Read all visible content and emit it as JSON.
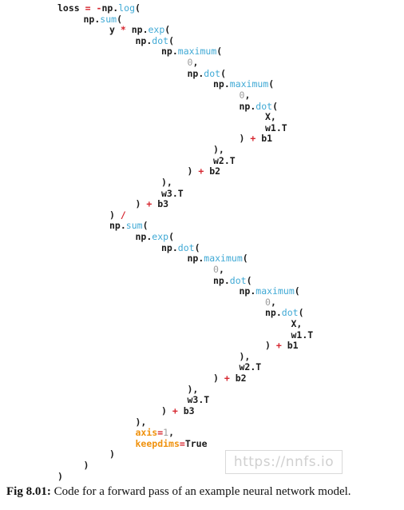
{
  "code_lines": [
    {
      "indent": 0,
      "tokens": [
        {
          "t": "loss ",
          "c": "default"
        },
        {
          "t": "=",
          "c": "op"
        },
        {
          "t": " ",
          "c": "default"
        },
        {
          "t": "-",
          "c": "op"
        },
        {
          "t": "np.",
          "c": "default"
        },
        {
          "t": "log",
          "c": "func"
        },
        {
          "t": "(",
          "c": "default"
        }
      ]
    },
    {
      "indent": 1,
      "tokens": [
        {
          "t": "np.",
          "c": "default"
        },
        {
          "t": "sum",
          "c": "func"
        },
        {
          "t": "(",
          "c": "default"
        }
      ]
    },
    {
      "indent": 2,
      "tokens": [
        {
          "t": "y ",
          "c": "default"
        },
        {
          "t": "*",
          "c": "op"
        },
        {
          "t": " np.",
          "c": "default"
        },
        {
          "t": "exp",
          "c": "func"
        },
        {
          "t": "(",
          "c": "default"
        }
      ]
    },
    {
      "indent": 3,
      "tokens": [
        {
          "t": "np.",
          "c": "default"
        },
        {
          "t": "dot",
          "c": "func"
        },
        {
          "t": "(",
          "c": "default"
        }
      ]
    },
    {
      "indent": 4,
      "tokens": [
        {
          "t": "np.",
          "c": "default"
        },
        {
          "t": "maximum",
          "c": "func"
        },
        {
          "t": "(",
          "c": "default"
        }
      ]
    },
    {
      "indent": 5,
      "tokens": [
        {
          "t": "0",
          "c": "num"
        },
        {
          "t": ",",
          "c": "default"
        }
      ]
    },
    {
      "indent": 5,
      "tokens": [
        {
          "t": "np.",
          "c": "default"
        },
        {
          "t": "dot",
          "c": "func"
        },
        {
          "t": "(",
          "c": "default"
        }
      ]
    },
    {
      "indent": 6,
      "tokens": [
        {
          "t": "np.",
          "c": "default"
        },
        {
          "t": "maximum",
          "c": "func"
        },
        {
          "t": "(",
          "c": "default"
        }
      ]
    },
    {
      "indent": 7,
      "tokens": [
        {
          "t": "0",
          "c": "num"
        },
        {
          "t": ",",
          "c": "default"
        }
      ]
    },
    {
      "indent": 7,
      "tokens": [
        {
          "t": "np.",
          "c": "default"
        },
        {
          "t": "dot",
          "c": "func"
        },
        {
          "t": "(",
          "c": "default"
        }
      ]
    },
    {
      "indent": 8,
      "tokens": [
        {
          "t": "X,",
          "c": "default"
        }
      ]
    },
    {
      "indent": 8,
      "tokens": [
        {
          "t": "w1.T",
          "c": "default"
        }
      ]
    },
    {
      "indent": 7,
      "tokens": [
        {
          "t": ") ",
          "c": "default"
        },
        {
          "t": "+",
          "c": "op"
        },
        {
          "t": " b1",
          "c": "default"
        }
      ]
    },
    {
      "indent": 6,
      "tokens": [
        {
          "t": "),",
          "c": "default"
        }
      ]
    },
    {
      "indent": 6,
      "tokens": [
        {
          "t": "w2.T",
          "c": "default"
        }
      ]
    },
    {
      "indent": 5,
      "tokens": [
        {
          "t": ") ",
          "c": "default"
        },
        {
          "t": "+",
          "c": "op"
        },
        {
          "t": " b2",
          "c": "default"
        }
      ]
    },
    {
      "indent": 4,
      "tokens": [
        {
          "t": "),",
          "c": "default"
        }
      ]
    },
    {
      "indent": 4,
      "tokens": [
        {
          "t": "w3.T",
          "c": "default"
        }
      ]
    },
    {
      "indent": 3,
      "tokens": [
        {
          "t": ") ",
          "c": "default"
        },
        {
          "t": "+",
          "c": "op"
        },
        {
          "t": " b3",
          "c": "default"
        }
      ]
    },
    {
      "indent": 2,
      "tokens": [
        {
          "t": ") ",
          "c": "default"
        },
        {
          "t": "/",
          "c": "op"
        }
      ]
    },
    {
      "indent": 2,
      "tokens": [
        {
          "t": "np.",
          "c": "default"
        },
        {
          "t": "sum",
          "c": "func"
        },
        {
          "t": "(",
          "c": "default"
        }
      ]
    },
    {
      "indent": 3,
      "tokens": [
        {
          "t": "np.",
          "c": "default"
        },
        {
          "t": "exp",
          "c": "func"
        },
        {
          "t": "(",
          "c": "default"
        }
      ]
    },
    {
      "indent": 4,
      "tokens": [
        {
          "t": "np.",
          "c": "default"
        },
        {
          "t": "dot",
          "c": "func"
        },
        {
          "t": "(",
          "c": "default"
        }
      ]
    },
    {
      "indent": 5,
      "tokens": [
        {
          "t": "np.",
          "c": "default"
        },
        {
          "t": "maximum",
          "c": "func"
        },
        {
          "t": "(",
          "c": "default"
        }
      ]
    },
    {
      "indent": 6,
      "tokens": [
        {
          "t": "0",
          "c": "num"
        },
        {
          "t": ",",
          "c": "default"
        }
      ]
    },
    {
      "indent": 6,
      "tokens": [
        {
          "t": "np.",
          "c": "default"
        },
        {
          "t": "dot",
          "c": "func"
        },
        {
          "t": "(",
          "c": "default"
        }
      ]
    },
    {
      "indent": 7,
      "tokens": [
        {
          "t": "np.",
          "c": "default"
        },
        {
          "t": "maximum",
          "c": "func"
        },
        {
          "t": "(",
          "c": "default"
        }
      ]
    },
    {
      "indent": 8,
      "tokens": [
        {
          "t": "0",
          "c": "num"
        },
        {
          "t": ",",
          "c": "default"
        }
      ]
    },
    {
      "indent": 8,
      "tokens": [
        {
          "t": "np.",
          "c": "default"
        },
        {
          "t": "dot",
          "c": "func"
        },
        {
          "t": "(",
          "c": "default"
        }
      ]
    },
    {
      "indent": 9,
      "tokens": [
        {
          "t": "X,",
          "c": "default"
        }
      ]
    },
    {
      "indent": 9,
      "tokens": [
        {
          "t": "w1.T",
          "c": "default"
        }
      ]
    },
    {
      "indent": 8,
      "tokens": [
        {
          "t": ") ",
          "c": "default"
        },
        {
          "t": "+",
          "c": "op"
        },
        {
          "t": " b1",
          "c": "default"
        }
      ]
    },
    {
      "indent": 7,
      "tokens": [
        {
          "t": "),",
          "c": "default"
        }
      ]
    },
    {
      "indent": 7,
      "tokens": [
        {
          "t": "w2.T",
          "c": "default"
        }
      ]
    },
    {
      "indent": 6,
      "tokens": [
        {
          "t": ") ",
          "c": "default"
        },
        {
          "t": "+",
          "c": "op"
        },
        {
          "t": " b2",
          "c": "default"
        }
      ]
    },
    {
      "indent": 5,
      "tokens": [
        {
          "t": "),",
          "c": "default"
        }
      ]
    },
    {
      "indent": 5,
      "tokens": [
        {
          "t": "w3.T",
          "c": "default"
        }
      ]
    },
    {
      "indent": 4,
      "tokens": [
        {
          "t": ") ",
          "c": "default"
        },
        {
          "t": "+",
          "c": "op"
        },
        {
          "t": " b3",
          "c": "default"
        }
      ]
    },
    {
      "indent": 3,
      "tokens": [
        {
          "t": "),",
          "c": "default"
        }
      ]
    },
    {
      "indent": 3,
      "tokens": [
        {
          "t": "axis",
          "c": "kw"
        },
        {
          "t": "=",
          "c": "op"
        },
        {
          "t": "1",
          "c": "num"
        },
        {
          "t": ",",
          "c": "default"
        }
      ]
    },
    {
      "indent": 3,
      "tokens": [
        {
          "t": "keepdims",
          "c": "kw"
        },
        {
          "t": "=",
          "c": "op"
        },
        {
          "t": "True",
          "c": "default"
        }
      ]
    },
    {
      "indent": 2,
      "tokens": [
        {
          "t": ")",
          "c": "default"
        }
      ]
    },
    {
      "indent": 1,
      "tokens": [
        {
          "t": ")",
          "c": "default"
        }
      ]
    },
    {
      "indent": 0,
      "tokens": [
        {
          "t": ")",
          "c": "default"
        }
      ]
    }
  ],
  "watermark": "https://nnfs.io",
  "caption": {
    "label": "Fig 8.01:",
    "text": " Code for a forward pass of an example neural network model."
  },
  "colors": {
    "default": "#1a1a1a",
    "func": "#3fa9d5",
    "operator": "#d6262f",
    "number": "#9c9c9c",
    "keyword": "#f0920e"
  }
}
